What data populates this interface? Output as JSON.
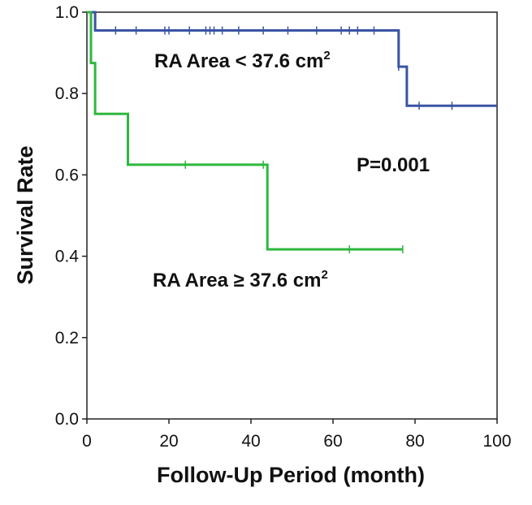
{
  "chart_data": {
    "type": "line",
    "step": true,
    "xlabel": "Follow-Up Period (month)",
    "ylabel": "Survival Rate",
    "xlim": [
      0,
      100
    ],
    "ylim": [
      0,
      1.0
    ],
    "xticks": [
      0,
      20,
      40,
      60,
      80,
      100
    ],
    "yticks": [
      "0.0",
      "0.2",
      "0.4",
      "0.6",
      "0.8",
      "1.0"
    ],
    "grid": false,
    "series": [
      {
        "name": "RA Area < 37.6 cm²",
        "color": "#3a53a4",
        "steps": [
          [
            0,
            1.0
          ],
          [
            2,
            1.0
          ],
          [
            2,
            0.955
          ],
          [
            76,
            0.955
          ],
          [
            76,
            0.866
          ],
          [
            78,
            0.866
          ],
          [
            78,
            0.77
          ],
          [
            100,
            0.77
          ]
        ],
        "censored": [
          [
            7,
            0.955
          ],
          [
            12,
            0.955
          ],
          [
            19,
            0.955
          ],
          [
            20,
            0.955
          ],
          [
            25,
            0.955
          ],
          [
            29,
            0.955
          ],
          [
            30,
            0.955
          ],
          [
            31,
            0.955
          ],
          [
            33,
            0.955
          ],
          [
            37,
            0.955
          ],
          [
            43,
            0.955
          ],
          [
            49,
            0.955
          ],
          [
            56,
            0.955
          ],
          [
            62,
            0.955
          ],
          [
            64,
            0.955
          ],
          [
            66,
            0.955
          ],
          [
            70,
            0.955
          ],
          [
            76,
            0.866
          ],
          [
            81,
            0.77
          ],
          [
            89,
            0.77
          ]
        ]
      },
      {
        "name": "RA Area ≥ 37.6 cm²",
        "color": "#2db83d",
        "steps": [
          [
            0,
            1.0
          ],
          [
            1,
            1.0
          ],
          [
            1,
            0.875
          ],
          [
            2,
            0.875
          ],
          [
            2,
            0.75
          ],
          [
            10,
            0.75
          ],
          [
            10,
            0.625
          ],
          [
            44,
            0.625
          ],
          [
            44,
            0.417
          ],
          [
            77,
            0.417
          ]
        ],
        "censored": [
          [
            24,
            0.625
          ],
          [
            43,
            0.625
          ],
          [
            64,
            0.417
          ],
          [
            77,
            0.417
          ]
        ]
      }
    ],
    "annotations": {
      "label_low_main": "RA Area < 37.6 cm",
      "label_low_sup": "2",
      "label_high_main": "RA Area ≥ 37.6 cm",
      "label_high_sup": "2",
      "p_value": "P=0.001"
    }
  }
}
